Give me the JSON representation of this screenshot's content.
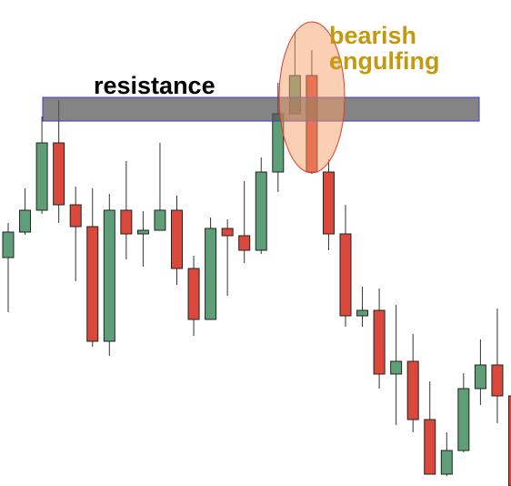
{
  "chart_data": {
    "type": "candlestick",
    "open": [
      251,
      279,
      303,
      377,
      309,
      285,
      159,
      303,
      277,
      281,
      303,
      239,
      183,
      283,
      275,
      259,
      345,
      409,
      451,
      345,
      277,
      187,
      193,
      123,
      137,
      73,
      13,
      39,
      107,
      133,
      99
    ],
    "close": [
      279,
      303,
      377,
      309,
      285,
      159,
      303,
      277,
      281,
      303,
      239,
      183,
      283,
      275,
      259,
      345,
      409,
      451,
      345,
      277,
      187,
      193,
      123,
      137,
      73,
      13,
      39,
      107,
      133,
      99,
      0
    ],
    "high": [
      289,
      327,
      406,
      424,
      329,
      327,
      321,
      357,
      302,
      377,
      319,
      253,
      295,
      293,
      335,
      361,
      443,
      499,
      479,
      359,
      309,
      219,
      217,
      199,
      167,
      115,
      59,
      124,
      161,
      195,
      100
    ],
    "low": [
      191,
      276,
      299,
      289,
      225,
      153,
      143,
      249,
      241,
      281,
      221,
      165,
      183,
      209,
      245,
      255,
      323,
      409,
      343,
      259,
      175,
      175,
      107,
      67,
      59,
      13,
      11,
      37,
      89,
      69,
      0
    ],
    "up_color": "#5f9f78",
    "down_color": "#d9483a",
    "ylim": [
      0,
      534
    ],
    "zone": {
      "label": "resistance",
      "range": [
        401,
        427
      ]
    },
    "annotation": {
      "lines": [
        "bearish",
        "engulfing"
      ],
      "color": "#c4990f"
    }
  }
}
